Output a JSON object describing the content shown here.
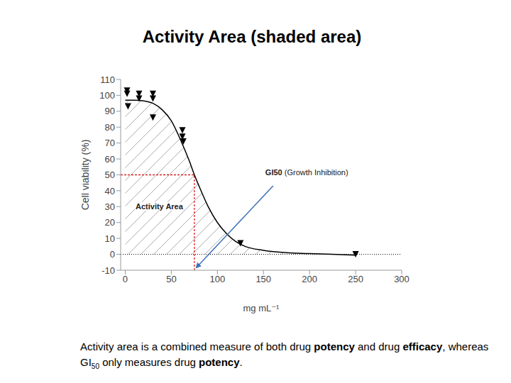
{
  "chart_data": {
    "type": "line",
    "title": "Activity Area (shaded area)",
    "x_label": "mg mL⁻¹",
    "y_label": "Cell viability (%)",
    "xlim": [
      -5,
      300
    ],
    "xticks": [
      0,
      50,
      100,
      150,
      200,
      250,
      300
    ],
    "ylim": [
      -10,
      110
    ],
    "yticks": [
      -10,
      0,
      10,
      20,
      30,
      40,
      50,
      60,
      70,
      80,
      90,
      100,
      110
    ],
    "grid": false,
    "baseline": 0,
    "curve": {
      "x": [
        0,
        10,
        20,
        30,
        40,
        50,
        60,
        70,
        75,
        80,
        90,
        100,
        110,
        120,
        130,
        150,
        175,
        200,
        250
      ],
      "values": [
        97,
        97,
        96.5,
        95,
        91,
        84,
        72,
        58,
        50,
        43,
        30,
        20,
        13,
        8,
        5,
        2.5,
        1,
        0.5,
        -0.5
      ],
      "color": "#000000"
    },
    "points": {
      "x": [
        2,
        2,
        3,
        15,
        15,
        30,
        30,
        30,
        62,
        62,
        63,
        125,
        250
      ],
      "values": [
        103,
        101,
        93,
        101,
        98,
        101,
        98,
        86,
        78,
        74,
        71,
        7,
        0
      ],
      "marker": "triangle_down",
      "color": "#000000"
    },
    "area_label": "Activity Area",
    "gi50": {
      "label": "GI50 (Growth Inhibition)",
      "x": 75,
      "y": 50
    },
    "caption": [
      "Activity area is a combined measure of both drug ",
      "potency",
      " and drug ",
      "efficacy",
      ", whereas GI",
      "50",
      " only measures drug ",
      "potency",
      "."
    ]
  }
}
